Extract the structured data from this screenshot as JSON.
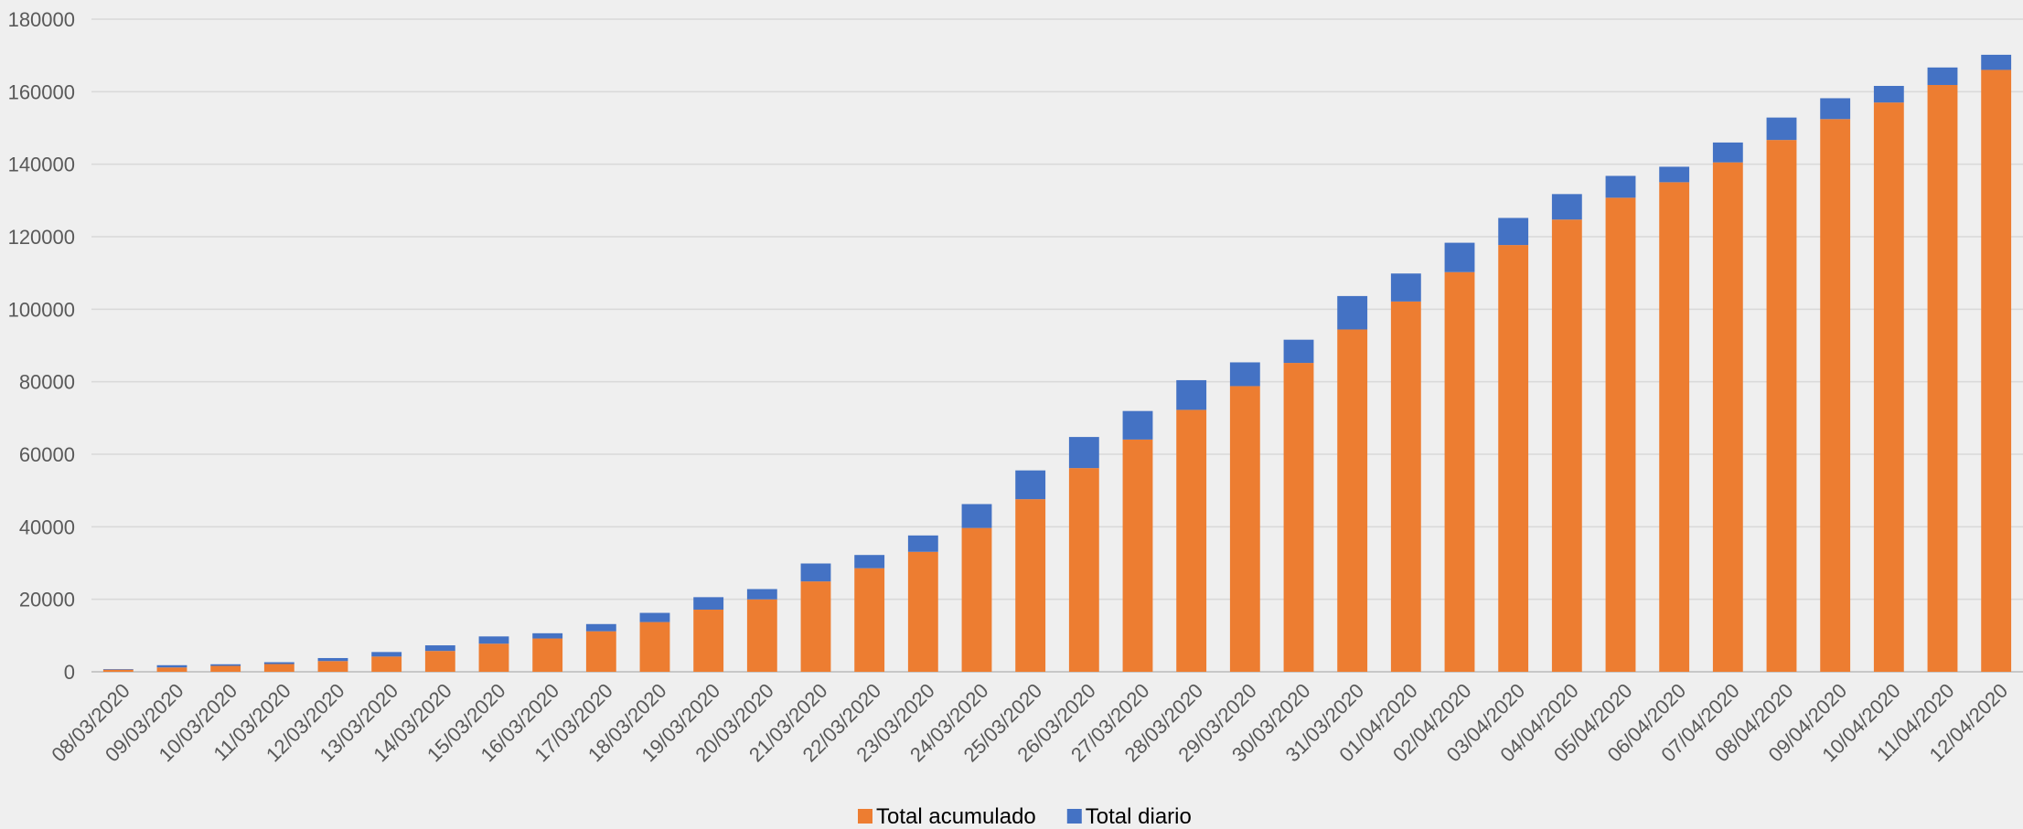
{
  "chart_data": {
    "type": "bar",
    "stacked": true,
    "categories": [
      "08/03/2020",
      "09/03/2020",
      "10/03/2020",
      "11/03/2020",
      "12/03/2020",
      "13/03/2020",
      "14/03/2020",
      "15/03/2020",
      "16/03/2020",
      "17/03/2020",
      "18/03/2020",
      "19/03/2020",
      "20/03/2020",
      "21/03/2020",
      "22/03/2020",
      "23/03/2020",
      "24/03/2020",
      "25/03/2020",
      "26/03/2020",
      "27/03/2020",
      "28/03/2020",
      "29/03/2020",
      "30/03/2020",
      "31/03/2020",
      "01/04/2020",
      "02/04/2020",
      "03/04/2020",
      "04/04/2020",
      "05/04/2020",
      "06/04/2020",
      "07/04/2020",
      "08/04/2020",
      "09/04/2020",
      "10/04/2020",
      "11/04/2020",
      "12/04/2020"
    ],
    "series": [
      {
        "name": "Total acumulado",
        "color": "#ed7d31",
        "values": [
          589,
          1204,
          1639,
          2140,
          2965,
          4209,
          5753,
          7753,
          9191,
          11178,
          13716,
          17147,
          19980,
          24926,
          28572,
          33089,
          39673,
          47610,
          56188,
          64059,
          72248,
          78797,
          85195,
          94417,
          102136,
          110238,
          117710,
          124736,
          130759,
          135032,
          140510,
          146690,
          152446,
          157022,
          161852,
          166019
        ]
      },
      {
        "name": "Total diario",
        "color": "#4472c4",
        "values": [
          159,
          615,
          435,
          501,
          825,
          1244,
          1544,
          2000,
          1438,
          1987,
          2538,
          3431,
          2833,
          4946,
          3646,
          4517,
          6584,
          7937,
          8578,
          7871,
          8189,
          6549,
          6398,
          9222,
          7719,
          8102,
          7472,
          7026,
          6023,
          4273,
          5478,
          6180,
          5756,
          4576,
          4830,
          4167
        ]
      }
    ],
    "ylim": [
      0,
      180000
    ],
    "yticks": [
      0,
      20000,
      40000,
      60000,
      80000,
      100000,
      120000,
      140000,
      160000,
      180000
    ],
    "grid": true,
    "legend": "bottom"
  }
}
